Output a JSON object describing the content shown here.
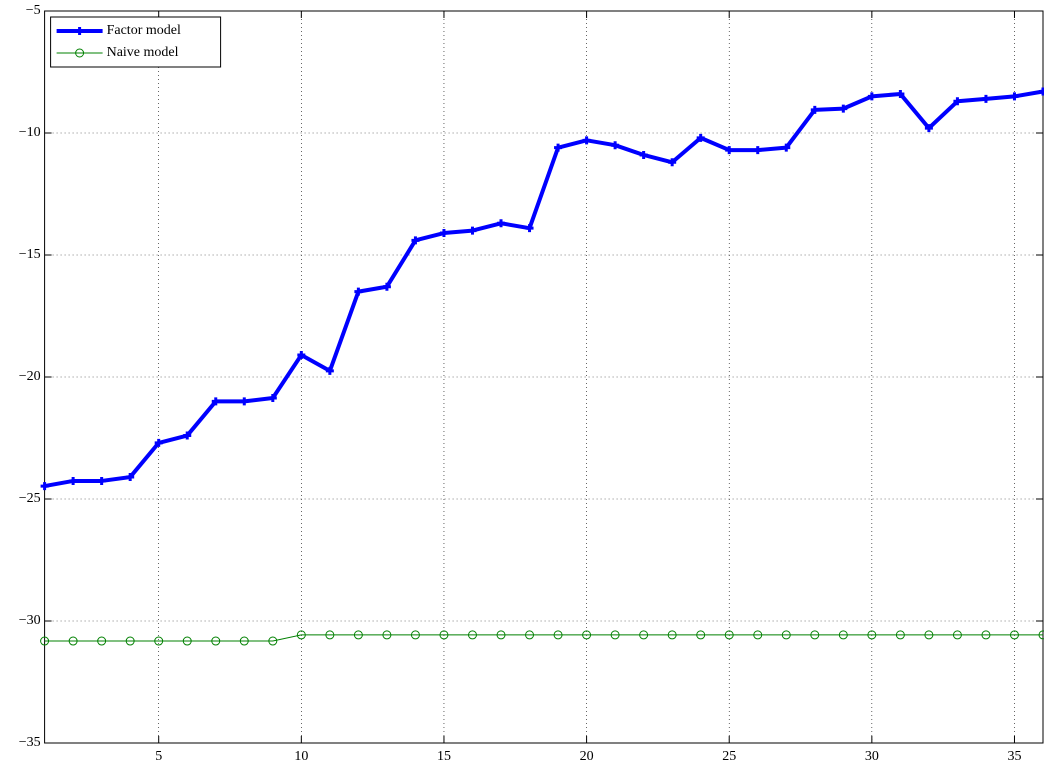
{
  "chart_data": {
    "type": "line",
    "x": [
      1,
      2,
      3,
      4,
      5,
      6,
      7,
      8,
      9,
      10,
      11,
      12,
      13,
      14,
      15,
      16,
      17,
      18,
      19,
      20,
      21,
      22,
      23,
      24,
      25,
      26,
      27,
      28,
      29,
      30,
      31,
      32,
      33,
      34,
      35,
      36
    ],
    "series": [
      {
        "name": "Factor model",
        "color": "#0000ff",
        "marker": "plus",
        "values": [
          -24.47,
          -24.26,
          -24.26,
          -24.1,
          -22.7,
          -22.4,
          -21.0,
          -21.0,
          -20.86,
          -19.1,
          -19.75,
          -16.5,
          -16.3,
          -14.4,
          -14.1,
          -14.0,
          -13.7,
          -13.9,
          -10.6,
          -10.3,
          -10.5,
          -10.9,
          -11.2,
          -10.2,
          -10.7,
          -10.7,
          -10.6,
          -9.05,
          -9.0,
          -8.5,
          -8.4,
          -9.8,
          -8.7,
          -8.6,
          -8.5,
          -8.3
        ]
      },
      {
        "name": "Naive model",
        "color": "#008000",
        "marker": "circle",
        "values": [
          -30.82,
          -30.82,
          -30.82,
          -30.82,
          -30.82,
          -30.82,
          -30.82,
          -30.82,
          -30.82,
          -30.57,
          -30.57,
          -30.57,
          -30.57,
          -30.57,
          -30.57,
          -30.57,
          -30.57,
          -30.57,
          -30.57,
          -30.57,
          -30.57,
          -30.57,
          -30.57,
          -30.57,
          -30.57,
          -30.57,
          -30.57,
          -30.57,
          -30.57,
          -30.57,
          -30.57,
          -30.57,
          -30.57,
          -30.57,
          -30.57,
          -30.57
        ]
      }
    ],
    "xlim": [
      1,
      36
    ],
    "xticks": [
      5,
      10,
      15,
      20,
      25,
      30,
      35
    ],
    "ylim": [
      -35,
      -5
    ],
    "yticks": [
      {
        "value": -35,
        "label": "−35"
      },
      {
        "value": -30,
        "label": "−30"
      },
      {
        "value": -25,
        "label": "−25"
      },
      {
        "value": -20,
        "label": "−20"
      },
      {
        "value": -15,
        "label": "−15"
      },
      {
        "value": -10,
        "label": "−10"
      },
      {
        "value": -5,
        "label": "−5"
      }
    ],
    "grid": true,
    "legend": "northwest"
  }
}
